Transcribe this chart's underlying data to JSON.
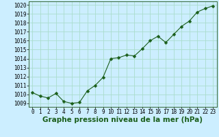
{
  "x": [
    0,
    1,
    2,
    3,
    4,
    5,
    6,
    7,
    8,
    9,
    10,
    11,
    12,
    13,
    14,
    15,
    16,
    17,
    18,
    19,
    20,
    21,
    22,
    23
  ],
  "y": [
    1010.2,
    1009.8,
    1009.6,
    1010.1,
    1009.2,
    1009.0,
    1009.1,
    1010.4,
    1011.0,
    1011.9,
    1014.0,
    1014.1,
    1014.4,
    1014.3,
    1015.1,
    1016.0,
    1016.5,
    1015.8,
    1016.7,
    1017.6,
    1018.2,
    1019.2,
    1019.6,
    1019.9
  ],
  "line_color": "#1a5e1a",
  "marker": "D",
  "marker_size": 2.5,
  "bg_color": "#cceeff",
  "grid_color": "#aaddcc",
  "xlabel": "Graphe pression niveau de la mer (hPa)",
  "xlabel_fontsize": 7.5,
  "ylabel_ticks": [
    1009,
    1010,
    1011,
    1012,
    1013,
    1014,
    1015,
    1016,
    1017,
    1018,
    1019,
    1020
  ],
  "ylim": [
    1008.6,
    1020.4
  ],
  "xlim": [
    -0.5,
    23.5
  ],
  "xticks": [
    0,
    1,
    2,
    3,
    4,
    5,
    6,
    7,
    8,
    9,
    10,
    11,
    12,
    13,
    14,
    15,
    16,
    17,
    18,
    19,
    20,
    21,
    22,
    23
  ],
  "tick_fontsize": 5.5,
  "bottom_label_color": "#1a5e1a"
}
